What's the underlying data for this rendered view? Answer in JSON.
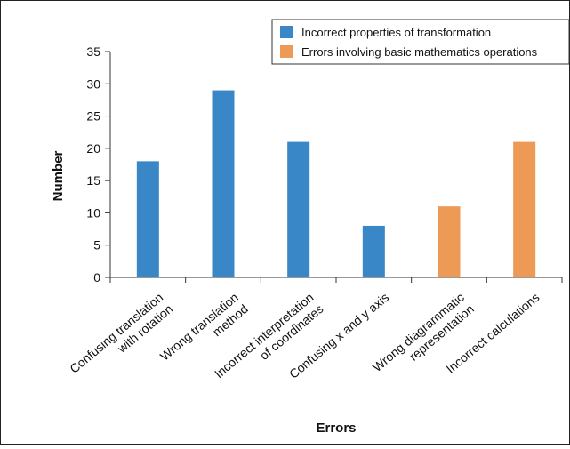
{
  "chart_data": {
    "type": "bar",
    "categories": [
      "Confusing translation with rotation",
      "Wrong translation method",
      "Incorrect interpretation of coordinates",
      "Confusing x and y axis",
      "Wrong diagrammatic representation",
      "Incorrect calculations"
    ],
    "category_label_lines": [
      [
        "Confusing translation",
        "with rotation"
      ],
      [
        "Wrong translation",
        "method"
      ],
      [
        "Incorrect interpretation",
        "of coordinates"
      ],
      [
        "Confusing x and y axis"
      ],
      [
        "Wrong diagrammatic",
        "representation"
      ],
      [
        "Incorrect calculations"
      ]
    ],
    "values": [
      18,
      29,
      21,
      8,
      11,
      21
    ],
    "bar_series": [
      "Incorrect properties of transformation",
      "Incorrect properties of transformation",
      "Incorrect properties of transformation",
      "Incorrect properties of transformation",
      "Errors involving basic mathematics operations",
      "Errors involving basic mathematics operations"
    ],
    "series": [
      {
        "name": "Incorrect properties of transformation",
        "color": "#3a87c8"
      },
      {
        "name": "Errors involving basic mathematics operations",
        "color": "#ec9a55"
      }
    ],
    "xlabel": "Errors",
    "ylabel": "Number",
    "ylim": [
      0,
      35
    ],
    "yticks": [
      0,
      5,
      10,
      15,
      20,
      25,
      30,
      35
    ],
    "grid": false,
    "legend_position": "top-right"
  }
}
